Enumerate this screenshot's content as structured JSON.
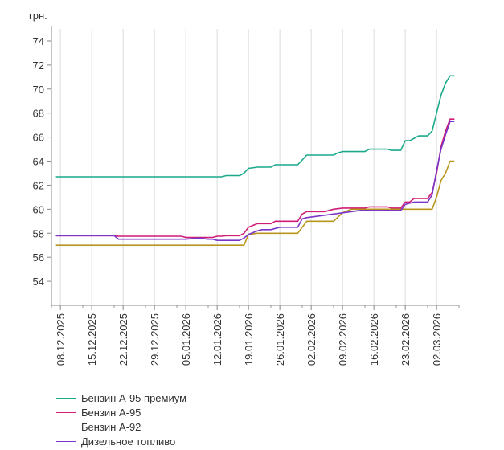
{
  "chart_data": {
    "type": "line",
    "y_unit": "грн.",
    "ylim": [
      52,
      75
    ],
    "y_ticks": [
      54,
      56,
      58,
      60,
      62,
      64,
      66,
      68,
      70,
      72,
      74
    ],
    "x_start": "2025-12-06",
    "x_end": "2026-03-07",
    "x_tick_labels": [
      "08.12.2025",
      "15.12.2025",
      "22.12.2025",
      "29.12.2025",
      "05.01.2026",
      "12.01.2026",
      "19.01.2026",
      "26.01.2026",
      "02.02.2026",
      "09.02.2026",
      "16.02.2026",
      "23.02.2026",
      "02.03.2026"
    ],
    "x_tick_dates": [
      "2025-12-08",
      "2025-12-15",
      "2025-12-22",
      "2025-12-29",
      "2026-01-05",
      "2026-01-12",
      "2026-01-19",
      "2026-01-26",
      "2026-02-02",
      "2026-02-09",
      "2026-02-16",
      "2026-02-23",
      "2026-03-02"
    ],
    "grid": "vertical",
    "legend_position": "bottom-left",
    "series": [
      {
        "name": "Бензин А-95 премиум",
        "color": "#1aa98a",
        "points": [
          [
            "2025-12-07",
            62.7
          ],
          [
            "2026-01-13",
            62.7
          ],
          [
            "2026-01-14",
            62.8
          ],
          [
            "2026-01-17",
            62.8
          ],
          [
            "2026-01-18",
            63.0
          ],
          [
            "2026-01-19",
            63.4
          ],
          [
            "2026-01-21",
            63.5
          ],
          [
            "2026-01-24",
            63.5
          ],
          [
            "2026-01-25",
            63.7
          ],
          [
            "2026-01-30",
            63.7
          ],
          [
            "2026-02-01",
            64.5
          ],
          [
            "2026-02-07",
            64.5
          ],
          [
            "2026-02-08",
            64.7
          ],
          [
            "2026-02-09",
            64.8
          ],
          [
            "2026-02-14",
            64.8
          ],
          [
            "2026-02-15",
            65.0
          ],
          [
            "2026-02-19",
            65.0
          ],
          [
            "2026-02-20",
            64.9
          ],
          [
            "2026-02-22",
            64.9
          ],
          [
            "2026-02-23",
            65.7
          ],
          [
            "2026-02-24",
            65.7
          ],
          [
            "2026-02-26",
            66.1
          ],
          [
            "2026-02-28",
            66.1
          ],
          [
            "2026-03-01",
            66.5
          ],
          [
            "2026-03-02",
            68.0
          ],
          [
            "2026-03-03",
            69.5
          ],
          [
            "2026-03-04",
            70.5
          ],
          [
            "2026-03-05",
            71.1
          ],
          [
            "2026-03-06",
            71.1
          ]
        ]
      },
      {
        "name": "Бензин А-95",
        "color": "#d01c75",
        "points": [
          [
            "2025-12-07",
            57.8
          ],
          [
            "2025-12-20",
            57.8
          ],
          [
            "2025-12-21",
            57.75
          ],
          [
            "2026-01-04",
            57.75
          ],
          [
            "2026-01-05",
            57.65
          ],
          [
            "2026-01-11",
            57.65
          ],
          [
            "2026-01-12",
            57.75
          ],
          [
            "2026-01-13",
            57.75
          ],
          [
            "2026-01-14",
            57.8
          ],
          [
            "2026-01-17",
            57.8
          ],
          [
            "2026-01-18",
            58.0
          ],
          [
            "2026-01-19",
            58.5
          ],
          [
            "2026-01-21",
            58.8
          ],
          [
            "2026-01-24",
            58.8
          ],
          [
            "2026-01-25",
            59.0
          ],
          [
            "2026-01-30",
            59.0
          ],
          [
            "2026-01-31",
            59.6
          ],
          [
            "2026-02-01",
            59.8
          ],
          [
            "2026-02-05",
            59.8
          ],
          [
            "2026-02-07",
            60.0
          ],
          [
            "2026-02-09",
            60.1
          ],
          [
            "2026-02-14",
            60.1
          ],
          [
            "2026-02-15",
            60.2
          ],
          [
            "2026-02-19",
            60.2
          ],
          [
            "2026-02-20",
            60.1
          ],
          [
            "2026-02-22",
            60.1
          ],
          [
            "2026-02-23",
            60.6
          ],
          [
            "2026-02-24",
            60.6
          ],
          [
            "2026-02-25",
            60.9
          ],
          [
            "2026-02-28",
            60.9
          ],
          [
            "2026-03-01",
            61.4
          ],
          [
            "2026-03-02",
            63.0
          ],
          [
            "2026-03-03",
            65.2
          ],
          [
            "2026-03-04",
            66.5
          ],
          [
            "2026-03-05",
            67.5
          ],
          [
            "2026-03-06",
            67.5
          ]
        ]
      },
      {
        "name": "Бензин А-92",
        "color": "#b8961d",
        "points": [
          [
            "2025-12-07",
            57.0
          ],
          [
            "2026-01-17",
            57.0
          ],
          [
            "2026-01-18",
            57.0
          ],
          [
            "2026-01-19",
            57.9
          ],
          [
            "2026-01-21",
            58.0
          ],
          [
            "2026-01-30",
            58.0
          ],
          [
            "2026-02-01",
            59.0
          ],
          [
            "2026-02-05",
            59.0
          ],
          [
            "2026-02-07",
            59.0
          ],
          [
            "2026-02-09",
            59.7
          ],
          [
            "2026-02-11",
            60.0
          ],
          [
            "2026-03-01",
            60.0
          ],
          [
            "2026-03-02",
            61.0
          ],
          [
            "2026-03-03",
            62.4
          ],
          [
            "2026-03-04",
            63.0
          ],
          [
            "2026-03-05",
            64.0
          ],
          [
            "2026-03-06",
            64.0
          ]
        ]
      },
      {
        "name": "Дизельное топливо",
        "color": "#7b35c9",
        "points": [
          [
            "2025-12-07",
            57.8
          ],
          [
            "2025-12-20",
            57.8
          ],
          [
            "2025-12-21",
            57.5
          ],
          [
            "2026-01-04",
            57.5
          ],
          [
            "2026-01-05",
            57.5
          ],
          [
            "2026-01-08",
            57.6
          ],
          [
            "2026-01-10",
            57.5
          ],
          [
            "2026-01-11",
            57.5
          ],
          [
            "2026-01-12",
            57.4
          ],
          [
            "2026-01-17",
            57.4
          ],
          [
            "2026-01-18",
            57.6
          ],
          [
            "2026-01-19",
            57.9
          ],
          [
            "2026-01-21",
            58.2
          ],
          [
            "2026-01-22",
            58.3
          ],
          [
            "2026-01-24",
            58.3
          ],
          [
            "2026-01-26",
            58.5
          ],
          [
            "2026-01-30",
            58.5
          ],
          [
            "2026-01-31",
            59.2
          ],
          [
            "2026-02-01",
            59.3
          ],
          [
            "2026-02-03",
            59.4
          ],
          [
            "2026-02-05",
            59.5
          ],
          [
            "2026-02-07",
            59.6
          ],
          [
            "2026-02-09",
            59.7
          ],
          [
            "2026-02-11",
            59.8
          ],
          [
            "2026-02-13",
            59.9
          ],
          [
            "2026-02-22",
            59.9
          ],
          [
            "2026-02-23",
            60.4
          ],
          [
            "2026-02-25",
            60.6
          ],
          [
            "2026-02-28",
            60.6
          ],
          [
            "2026-03-01",
            61.2
          ],
          [
            "2026-03-02",
            63.2
          ],
          [
            "2026-03-03",
            65.0
          ],
          [
            "2026-03-04",
            66.2
          ],
          [
            "2026-03-05",
            67.3
          ],
          [
            "2026-03-06",
            67.3
          ]
        ]
      }
    ]
  }
}
